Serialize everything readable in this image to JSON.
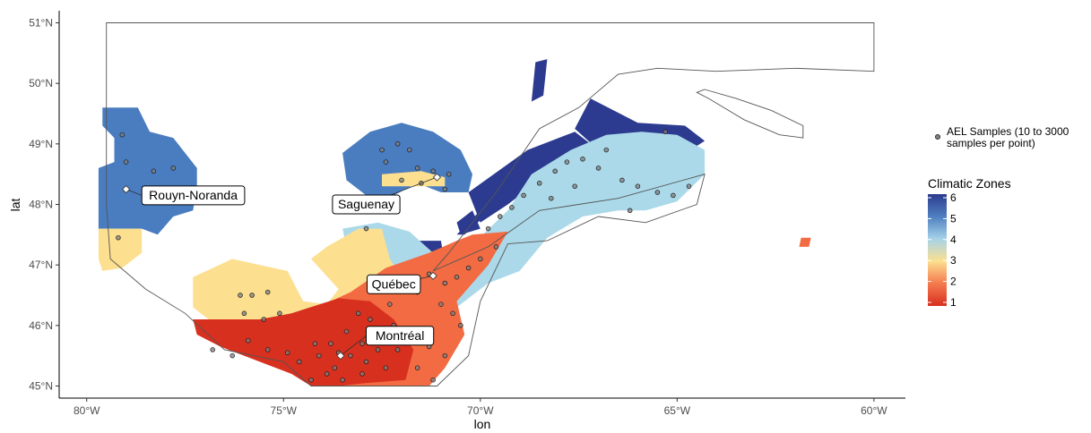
{
  "chart_data": {
    "type": "map",
    "xlabel": "lon",
    "ylabel": "lat",
    "xlim": [
      -80.7,
      -59.2
    ],
    "ylim": [
      44.8,
      51.2
    ],
    "x_ticks": [
      {
        "value": -80,
        "label": "80°W"
      },
      {
        "value": -75,
        "label": "75°W"
      },
      {
        "value": -70,
        "label": "70°W"
      },
      {
        "value": -65,
        "label": "65°W"
      },
      {
        "value": -60,
        "label": "60°W"
      }
    ],
    "y_ticks": [
      {
        "value": 45,
        "label": "45°N"
      },
      {
        "value": 46,
        "label": "46°N"
      },
      {
        "value": 47,
        "label": "47°N"
      },
      {
        "value": 48,
        "label": "48°N"
      },
      {
        "value": 49,
        "label": "49°N"
      },
      {
        "value": 50,
        "label": "50°N"
      },
      {
        "value": 51,
        "label": "51°N"
      }
    ],
    "grid": false,
    "legend": {
      "position": "right",
      "samples_label_line1": "AEL Samples (10 to 3000",
      "samples_label_line2": "samples per point)",
      "title": "Climatic Zones",
      "zone_ticks": [
        "6",
        "5",
        "4",
        "3",
        "2",
        "1"
      ],
      "color_scale": [
        "#2C3B8F",
        "#4F7FC0",
        "#A6D3E8",
        "#FCDF8F",
        "#F57A4E",
        "#D7301F"
      ]
    },
    "zone_colors": {
      "1": "#D7301F",
      "2": "#F26B43",
      "3": "#FCDF8F",
      "4": "#ABD9E9",
      "5": "#4A7CC0",
      "6": "#2C3B8F"
    },
    "regions": [
      {
        "zone": 5,
        "polygon": [
          [
            -79.6,
            49.6
          ],
          [
            -78.7,
            49.6
          ],
          [
            -78.4,
            49.2
          ],
          [
            -77.8,
            49.1
          ],
          [
            -77.2,
            48.6
          ],
          [
            -77.2,
            48.3
          ],
          [
            -77.3,
            47.9
          ],
          [
            -77.8,
            47.8
          ],
          [
            -78.2,
            47.5
          ],
          [
            -78.6,
            47.6
          ],
          [
            -79.7,
            47.6
          ],
          [
            -79.7,
            48.6
          ],
          [
            -79.3,
            48.7
          ],
          [
            -79.3,
            49.1
          ],
          [
            -79.6,
            49.3
          ]
        ]
      },
      {
        "zone": 3,
        "polygon": [
          [
            -79.7,
            47.6
          ],
          [
            -78.6,
            47.6
          ],
          [
            -78.6,
            47.2
          ],
          [
            -79.1,
            46.95
          ],
          [
            -79.6,
            46.9
          ],
          [
            -79.7,
            47.1
          ]
        ]
      },
      {
        "zone": 5,
        "polygon": [
          [
            -72.8,
            49.2
          ],
          [
            -72.0,
            49.35
          ],
          [
            -71.2,
            49.2
          ],
          [
            -70.5,
            48.9
          ],
          [
            -70.2,
            48.5
          ],
          [
            -70.3,
            48.2
          ],
          [
            -71.0,
            48.2
          ],
          [
            -71.6,
            48.35
          ],
          [
            -72.2,
            48.15
          ],
          [
            -72.8,
            48.1
          ],
          [
            -73.4,
            48.4
          ],
          [
            -73.5,
            48.85
          ]
        ]
      },
      {
        "zone": 3,
        "polygon": [
          [
            -72.5,
            48.5
          ],
          [
            -71.5,
            48.55
          ],
          [
            -70.9,
            48.45
          ],
          [
            -70.9,
            48.3
          ],
          [
            -71.8,
            48.3
          ],
          [
            -72.5,
            48.3
          ]
        ]
      },
      {
        "zone": 6,
        "polygon": [
          [
            -70.6,
            47.5
          ],
          [
            -69.4,
            48.3
          ],
          [
            -68.6,
            48.7
          ],
          [
            -68.2,
            48.9
          ],
          [
            -68.8,
            48.6
          ],
          [
            -69.9,
            47.8
          ],
          [
            -70.4,
            47.5
          ]
        ]
      },
      {
        "zone": 6,
        "polygon": [
          [
            -70.3,
            48.2
          ],
          [
            -68.8,
            48.9
          ],
          [
            -67.6,
            49.2
          ],
          [
            -67.2,
            49.0
          ],
          [
            -68.1,
            48.6
          ],
          [
            -69.3,
            48.0
          ],
          [
            -70.0,
            47.7
          ]
        ]
      },
      {
        "zone": 6,
        "polygon": [
          [
            -70.5,
            47.5
          ],
          [
            -70.0,
            47.6
          ],
          [
            -70.2,
            47.9
          ],
          [
            -70.6,
            47.7
          ]
        ]
      },
      {
        "zone": 6,
        "polygon": [
          [
            -72.2,
            47.4
          ],
          [
            -71.0,
            47.4
          ],
          [
            -70.9,
            47.0
          ],
          [
            -71.5,
            46.8
          ],
          [
            -72.1,
            47.0
          ]
        ]
      },
      {
        "zone": 6,
        "polygon": [
          [
            -67.2,
            49.75
          ],
          [
            -66.0,
            49.35
          ],
          [
            -64.8,
            49.3
          ],
          [
            -64.3,
            49.05
          ],
          [
            -64.9,
            48.8
          ],
          [
            -66.0,
            48.9
          ],
          [
            -67.0,
            48.9
          ],
          [
            -67.6,
            49.25
          ]
        ]
      },
      {
        "zone": 6,
        "polygon": [
          [
            -68.6,
            50.35
          ],
          [
            -68.3,
            50.4
          ],
          [
            -68.4,
            49.8
          ],
          [
            -68.7,
            49.7
          ]
        ]
      },
      {
        "zone": 4,
        "polygon": [
          [
            -73.5,
            47.6
          ],
          [
            -72.6,
            47.7
          ],
          [
            -71.8,
            47.55
          ],
          [
            -71.2,
            47.2
          ],
          [
            -70.7,
            47.0
          ],
          [
            -70.1,
            47.4
          ],
          [
            -69.3,
            47.9
          ],
          [
            -68.7,
            48.5
          ],
          [
            -67.7,
            48.9
          ],
          [
            -66.8,
            49.15
          ],
          [
            -65.9,
            49.2
          ],
          [
            -65.0,
            49.15
          ],
          [
            -64.3,
            48.9
          ],
          [
            -64.3,
            48.5
          ],
          [
            -65.0,
            48.05
          ],
          [
            -65.8,
            47.9
          ],
          [
            -66.5,
            47.9
          ],
          [
            -67.4,
            47.8
          ],
          [
            -68.3,
            47.45
          ],
          [
            -69.0,
            46.9
          ],
          [
            -69.8,
            46.7
          ],
          [
            -70.6,
            46.3
          ],
          [
            -71.5,
            46.3
          ],
          [
            -72.4,
            46.8
          ],
          [
            -72.8,
            47.0
          ],
          [
            -73.4,
            47.3
          ]
        ]
      },
      {
        "zone": 3,
        "polygon": [
          [
            -77.3,
            46.8
          ],
          [
            -76.3,
            47.1
          ],
          [
            -75.6,
            47.0
          ],
          [
            -74.9,
            46.9
          ],
          [
            -74.5,
            46.4
          ],
          [
            -73.9,
            46.35
          ],
          [
            -73.6,
            46.6
          ],
          [
            -74.3,
            47.1
          ],
          [
            -73.9,
            47.3
          ],
          [
            -73.1,
            47.6
          ],
          [
            -72.5,
            47.6
          ],
          [
            -72.3,
            47.1
          ],
          [
            -71.9,
            46.7
          ],
          [
            -73.0,
            46.2
          ],
          [
            -74.2,
            45.95
          ],
          [
            -75.5,
            45.85
          ],
          [
            -76.6,
            45.95
          ],
          [
            -77.3,
            46.3
          ]
        ]
      },
      {
        "zone": 2,
        "polygon": [
          [
            -75.6,
            46.1
          ],
          [
            -74.3,
            46.25
          ],
          [
            -73.3,
            46.55
          ],
          [
            -72.4,
            46.95
          ],
          [
            -71.3,
            47.2
          ],
          [
            -70.6,
            47.4
          ],
          [
            -70.2,
            47.5
          ],
          [
            -69.3,
            47.55
          ],
          [
            -69.8,
            47.0
          ],
          [
            -70.6,
            46.4
          ],
          [
            -70.4,
            45.85
          ],
          [
            -70.9,
            45.3
          ],
          [
            -71.3,
            45.0
          ],
          [
            -72.4,
            45.0
          ],
          [
            -73.2,
            45.0
          ],
          [
            -74.0,
            45.0
          ],
          [
            -74.8,
            45.2
          ],
          [
            -75.5,
            45.6
          ]
        ]
      },
      {
        "zone": 1,
        "polygon": [
          [
            -77.3,
            46.1
          ],
          [
            -75.6,
            46.1
          ],
          [
            -74.8,
            46.2
          ],
          [
            -73.6,
            46.45
          ],
          [
            -72.8,
            46.4
          ],
          [
            -72.2,
            46.1
          ],
          [
            -71.7,
            45.6
          ],
          [
            -71.9,
            45.1
          ],
          [
            -72.9,
            45.05
          ],
          [
            -73.6,
            45.0
          ],
          [
            -74.3,
            45.0
          ],
          [
            -74.8,
            45.2
          ],
          [
            -75.6,
            45.4
          ],
          [
            -76.6,
            45.65
          ],
          [
            -77.2,
            45.85
          ]
        ]
      },
      {
        "zone": 2,
        "polygon": [
          [
            -61.85,
            47.45
          ],
          [
            -61.6,
            47.45
          ],
          [
            -61.65,
            47.3
          ],
          [
            -61.9,
            47.3
          ]
        ]
      }
    ],
    "outline": [
      [
        -79.5,
        51.0
      ],
      [
        -60.0,
        51.0
      ],
      [
        -60.0,
        50.2
      ],
      [
        -62.0,
        50.25
      ],
      [
        -64.0,
        50.2
      ],
      [
        -65.5,
        50.25
      ],
      [
        -66.5,
        50.15
      ],
      [
        -67.5,
        49.6
      ],
      [
        -68.5,
        49.25
      ],
      [
        -69.6,
        48.2
      ],
      [
        -70.8,
        47.2
      ],
      [
        -71.2,
        46.9
      ],
      [
        -69.8,
        47.3
      ],
      [
        -68.5,
        47.9
      ],
      [
        -66.5,
        48.1
      ],
      [
        -64.3,
        48.5
      ],
      [
        -64.5,
        48.0
      ],
      [
        -65.8,
        47.7
      ],
      [
        -67.0,
        47.8
      ],
      [
        -68.3,
        47.4
      ],
      [
        -69.3,
        47.35
      ],
      [
        -70.0,
        46.4
      ],
      [
        -70.3,
        45.5
      ],
      [
        -71.1,
        45.0
      ],
      [
        -74.3,
        45.0
      ],
      [
        -75.0,
        45.4
      ],
      [
        -76.5,
        45.6
      ],
      [
        -77.5,
        46.2
      ],
      [
        -78.5,
        46.6
      ],
      [
        -79.4,
        47.1
      ],
      [
        -79.5,
        48.0
      ]
    ],
    "island": [
      [
        -64.3,
        49.9
      ],
      [
        -63.5,
        49.75
      ],
      [
        -62.6,
        49.55
      ],
      [
        -61.8,
        49.3
      ],
      [
        -61.8,
        49.1
      ],
      [
        -62.4,
        49.15
      ],
      [
        -63.3,
        49.4
      ],
      [
        -64.2,
        49.75
      ],
      [
        -64.5,
        49.85
      ]
    ],
    "samples": [
      [
        -79.1,
        49.15
      ],
      [
        -79.0,
        48.7
      ],
      [
        -78.3,
        48.55
      ],
      [
        -77.8,
        48.6
      ],
      [
        -79.2,
        47.45
      ],
      [
        -76.1,
        46.5
      ],
      [
        -75.8,
        46.5
      ],
      [
        -75.4,
        46.55
      ],
      [
        -76.0,
        46.2
      ],
      [
        -75.5,
        46.1
      ],
      [
        -75.1,
        46.2
      ],
      [
        -72.5,
        48.9
      ],
      [
        -72.1,
        49.0
      ],
      [
        -71.8,
        48.9
      ],
      [
        -72.4,
        48.7
      ],
      [
        -71.6,
        48.6
      ],
      [
        -71.2,
        48.55
      ],
      [
        -70.8,
        48.5
      ],
      [
        -72.0,
        48.4
      ],
      [
        -71.5,
        48.35
      ],
      [
        -70.9,
        48.25
      ],
      [
        -69.8,
        47.6
      ],
      [
        -69.5,
        47.8
      ],
      [
        -69.2,
        47.95
      ],
      [
        -68.9,
        48.15
      ],
      [
        -68.5,
        48.35
      ],
      [
        -68.1,
        48.55
      ],
      [
        -67.8,
        48.7
      ],
      [
        -67.4,
        48.75
      ],
      [
        -67.0,
        48.6
      ],
      [
        -66.4,
        48.4
      ],
      [
        -66.0,
        48.3
      ],
      [
        -65.5,
        48.2
      ],
      [
        -65.1,
        48.15
      ],
      [
        -64.7,
        48.3
      ],
      [
        -65.3,
        49.2
      ],
      [
        -66.8,
        48.9
      ],
      [
        -67.6,
        48.3
      ],
      [
        -68.2,
        48.1
      ],
      [
        -66.2,
        47.9
      ],
      [
        -69.6,
        47.3
      ],
      [
        -70.0,
        47.1
      ],
      [
        -70.3,
        46.95
      ],
      [
        -70.6,
        46.8
      ],
      [
        -70.9,
        46.7
      ],
      [
        -72.9,
        47.6
      ],
      [
        -71.3,
        46.85
      ],
      [
        -71.6,
        46.55
      ],
      [
        -71.0,
        46.35
      ],
      [
        -72.3,
        46.35
      ],
      [
        -72.8,
        46.1
      ],
      [
        -70.7,
        46.2
      ],
      [
        -70.5,
        46.0
      ],
      [
        -71.9,
        45.8
      ],
      [
        -71.3,
        45.65
      ],
      [
        -70.9,
        45.5
      ],
      [
        -71.6,
        45.3
      ],
      [
        -71.2,
        45.1
      ],
      [
        -73.1,
        46.2
      ],
      [
        -73.4,
        45.9
      ],
      [
        -73.8,
        45.7
      ],
      [
        -74.1,
        45.5
      ],
      [
        -73.3,
        45.5
      ],
      [
        -72.6,
        45.6
      ],
      [
        -72.4,
        45.3
      ],
      [
        -73.0,
        45.2
      ],
      [
        -73.5,
        45.1
      ],
      [
        -73.9,
        45.2
      ],
      [
        -74.3,
        45.1
      ],
      [
        -73.7,
        45.3
      ],
      [
        -72.9,
        45.4
      ],
      [
        -72.1,
        45.6
      ],
      [
        -73.6,
        45.55
      ],
      [
        -74.6,
        45.4
      ],
      [
        -74.2,
        45.7
      ],
      [
        -72.7,
        45.9
      ],
      [
        -72.2,
        46.0
      ],
      [
        -73.0,
        45.7
      ],
      [
        -76.3,
        45.5
      ],
      [
        -75.9,
        45.75
      ],
      [
        -76.8,
        45.6
      ],
      [
        -75.4,
        45.6
      ],
      [
        -74.9,
        45.55
      ]
    ],
    "cities": [
      {
        "name": "Rouyn-Noranda",
        "lon": -79.0,
        "lat": 48.25,
        "label_lon": -78.6,
        "label_lat": 48.15
      },
      {
        "name": "Saguenay",
        "lon": -71.1,
        "lat": 48.45,
        "label_lon": -72.9,
        "label_lat": 48.0
      },
      {
        "name": "Québec",
        "lon": -71.2,
        "lat": 46.82,
        "label_lon": -72.2,
        "label_lat": 46.68
      },
      {
        "name": "Montréal",
        "lon": -73.55,
        "lat": 45.5,
        "label_lon": -72.9,
        "label_lat": 45.83
      }
    ]
  }
}
